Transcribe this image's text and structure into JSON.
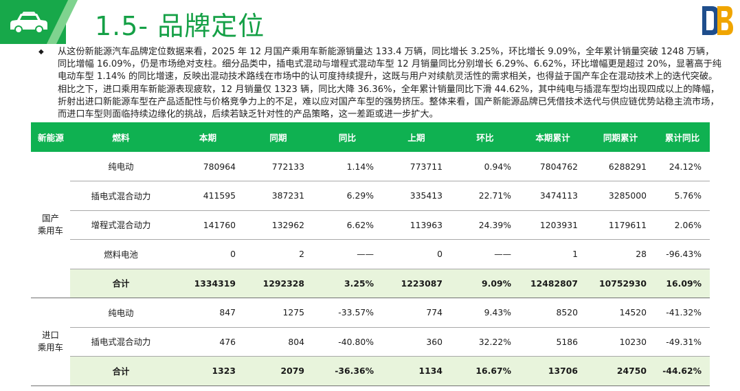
{
  "header": {
    "title": "1.5- 品牌定位",
    "brand_color": "#17a84a",
    "icon": "car-icon",
    "logo": "db-logo-icon"
  },
  "paragraph": {
    "bullet": "◆",
    "text": "从这份新能源汽车品牌定位数据来看，2025 年 12 月国产乘用车新能源销量达 133.4 万辆，同比增长 3.25%，环比增长 9.09%，全年累计销量突破 1248 万辆，同比增幅 16.09%，仍是市场绝对支柱。细分品类中，插电式混动与增程式混动车型 12 月销量同比分别增长 6.29%、6.62%，环比增幅更是超过 20%，显著高于纯电动车型 1.14% 的同比增速，反映出混动技术路线在市场中的认可度持续提升，这既与用户对续航灵活性的需求相关，也得益于国产车企在混动技术上的迭代突破。相比之下，进口乘用车新能源表现疲软，12 月销量仅 1323 辆，同比大降 36.36%，全年累计销量同比下滑 44.62%，其中纯电与插混车型均出现四成以上的降幅，折射出进口新能源车型在产品适配性与价格竞争力上的不足，难以应对国产车型的强势挤压。整体来看，国产新能源品牌已凭借技术迭代与供应链优势站稳主流市场，而进口车型则面临持续边缘化的挑战，后续若缺乏针对性的产品策略，这一差距或进一步扩大。"
  },
  "table": {
    "header_color": "#0fb151",
    "sum_row_color": "#e8f4dc",
    "columns": [
      "新能源",
      "燃料",
      "本期",
      "同期",
      "同比",
      "上期",
      "环比",
      "本期累计",
      "同期累计",
      "累计同比"
    ],
    "groups": [
      {
        "category": "国产\n乘用车",
        "rows": [
          {
            "fuel": "纯电动",
            "cur": "780964",
            "prev_year": "772133",
            "yoy": "1.14%",
            "prev": "773711",
            "mom": "0.94%",
            "cum": "7804762",
            "cum_prev": "6288291",
            "cum_yoy": "24.12%"
          },
          {
            "fuel": "插电式混合动力",
            "cur": "411595",
            "prev_year": "387231",
            "yoy": "6.29%",
            "prev": "335413",
            "mom": "22.71%",
            "cum": "3474113",
            "cum_prev": "3285000",
            "cum_yoy": "5.76%"
          },
          {
            "fuel": "增程式混合动力",
            "cur": "141760",
            "prev_year": "132962",
            "yoy": "6.62%",
            "prev": "113963",
            "mom": "24.39%",
            "cum": "1203931",
            "cum_prev": "1179611",
            "cum_yoy": "2.06%"
          },
          {
            "fuel": "燃料电池",
            "cur": "0",
            "prev_year": "2",
            "yoy": "——",
            "prev": "0",
            "mom": "——",
            "cum": "1",
            "cum_prev": "28",
            "cum_yoy": "-96.43%"
          }
        ],
        "total": {
          "fuel": "合计",
          "cur": "1334319",
          "prev_year": "1292328",
          "yoy": "3.25%",
          "prev": "1223087",
          "mom": "9.09%",
          "cum": "12482807",
          "cum_prev": "10752930",
          "cum_yoy": "16.09%"
        }
      },
      {
        "category": "进口\n乘用车",
        "rows": [
          {
            "fuel": "纯电动",
            "cur": "847",
            "prev_year": "1275",
            "yoy": "-33.57%",
            "prev": "774",
            "mom": "9.43%",
            "cum": "8520",
            "cum_prev": "14520",
            "cum_yoy": "-41.32%"
          },
          {
            "fuel": "插电式混合动力",
            "cur": "476",
            "prev_year": "804",
            "yoy": "-40.80%",
            "prev": "360",
            "mom": "32.22%",
            "cum": "5186",
            "cum_prev": "10230",
            "cum_yoy": "-49.31%"
          }
        ],
        "total": {
          "fuel": "合计",
          "cur": "1323",
          "prev_year": "2079",
          "yoy": "-36.36%",
          "prev": "1134",
          "mom": "16.67%",
          "cum": "13706",
          "cum_prev": "24750",
          "cum_yoy": "-44.62%"
        }
      }
    ]
  }
}
